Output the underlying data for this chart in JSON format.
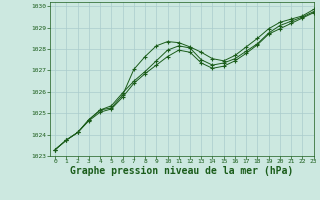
{
  "bg_color": "#cce8e0",
  "grid_color": "#aacccc",
  "line_color": "#1a5c1a",
  "marker_color": "#1a5c1a",
  "xlabel": "Graphe pression niveau de la mer (hPa)",
  "xlabel_fontsize": 7,
  "xlim": [
    -0.5,
    23
  ],
  "ylim": [
    1023,
    1030.2
  ],
  "yticks": [
    1023,
    1024,
    1025,
    1026,
    1027,
    1028,
    1029,
    1030
  ],
  "xticks": [
    0,
    1,
    2,
    3,
    4,
    5,
    6,
    7,
    8,
    9,
    10,
    11,
    12,
    13,
    14,
    15,
    16,
    17,
    18,
    19,
    20,
    21,
    22,
    23
  ],
  "series": [
    [
      1023.3,
      1023.75,
      1024.1,
      1024.7,
      1025.15,
      1025.25,
      1025.85,
      1027.05,
      1027.65,
      1028.15,
      1028.35,
      1028.3,
      1028.1,
      1027.85,
      1027.55,
      1027.45,
      1027.7,
      1028.1,
      1028.5,
      1028.95,
      1029.25,
      1029.4,
      1029.55,
      1029.85
    ],
    [
      1023.3,
      1023.75,
      1024.1,
      1024.7,
      1025.15,
      1025.35,
      1025.95,
      1026.5,
      1026.95,
      1027.45,
      1027.95,
      1028.15,
      1028.05,
      1027.5,
      1027.25,
      1027.35,
      1027.55,
      1027.9,
      1028.25,
      1028.75,
      1029.1,
      1029.3,
      1029.5,
      1029.75
    ],
    [
      1023.3,
      1023.75,
      1024.1,
      1024.65,
      1025.05,
      1025.2,
      1025.75,
      1026.4,
      1026.85,
      1027.25,
      1027.65,
      1027.95,
      1027.85,
      1027.35,
      1027.1,
      1027.2,
      1027.45,
      1027.8,
      1028.2,
      1028.7,
      1028.95,
      1029.2,
      1029.45,
      1029.7
    ]
  ]
}
